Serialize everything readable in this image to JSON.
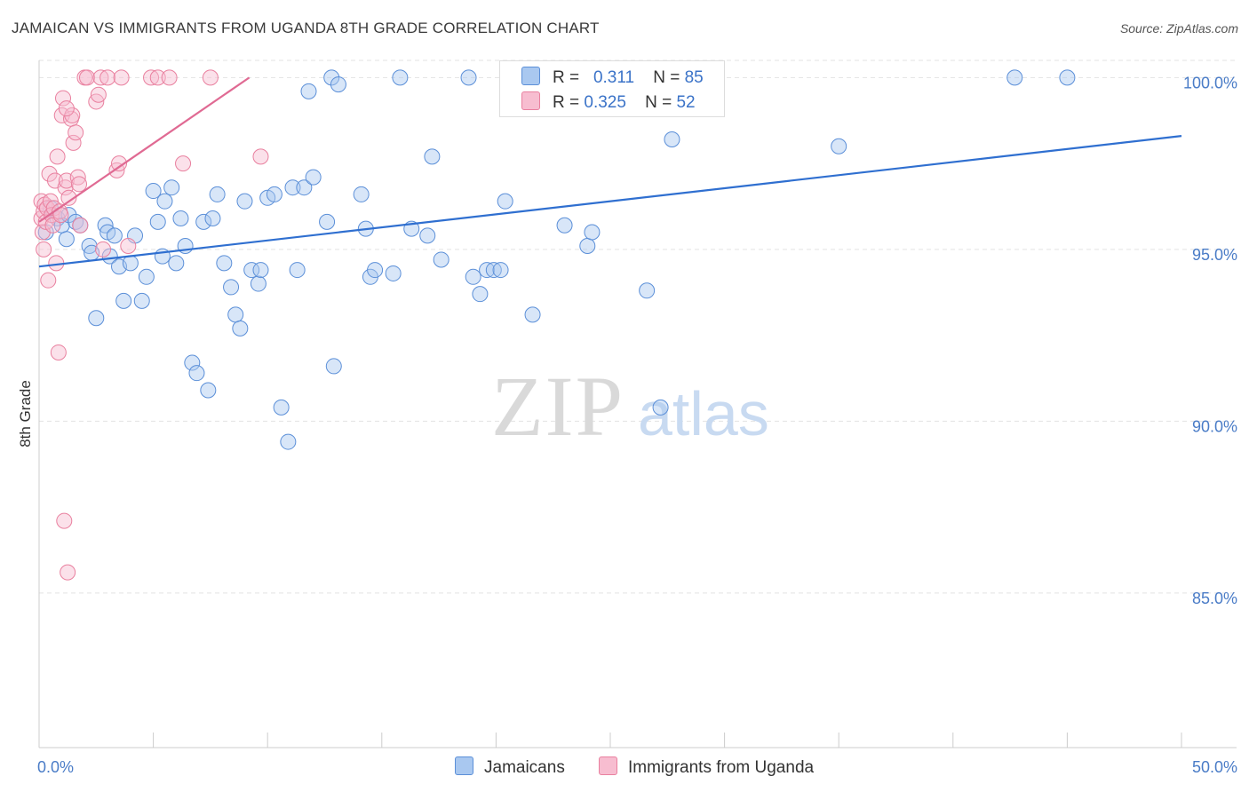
{
  "header": {
    "title": "JAMAICAN VS IMMIGRANTS FROM UGANDA 8TH GRADE CORRELATION CHART",
    "source": "Source: ZipAtlas.com"
  },
  "watermark": {
    "zip": "ZIP",
    "atlas": "atlas"
  },
  "legend": {
    "r_label": "R =",
    "n_label": "N =",
    "rows": [
      {
        "r": "0.311",
        "n": "85",
        "color": "#a9c8f0",
        "border": "#5b8fd8"
      },
      {
        "r": "0.325",
        "n": "52",
        "color": "#f7bdd0",
        "border": "#e9809f"
      }
    ]
  },
  "bottom_legend": [
    {
      "label": "Jamaicans",
      "color": "#a9c8f0",
      "border": "#5b8fd8"
    },
    {
      "label": "Immigrants from Uganda",
      "color": "#f7bdd0",
      "border": "#e9809f"
    }
  ],
  "colors": {
    "blue_fill": "rgba(169,200,240,0.45)",
    "blue_stroke": "#5b8fd8",
    "blue_line": "#2f6fd0",
    "pink_fill": "rgba(247,189,208,0.45)",
    "pink_stroke": "#e9809f",
    "pink_line": "#e06a93"
  },
  "chart_data": {
    "type": "scatter",
    "title": "JAMAICAN VS IMMIGRANTS FROM UGANDA 8TH GRADE CORRELATION CHART",
    "xlabel": "",
    "ylabel": "8th Grade",
    "xlim": [
      0,
      50
    ],
    "ylim": [
      80.5,
      100.5
    ],
    "x_tick_labels": [
      "0.0%",
      "50.0%"
    ],
    "y_ticks": [
      85,
      90,
      95,
      100
    ],
    "y_tick_labels": [
      "85.0%",
      "90.0%",
      "95.0%",
      "100.0%"
    ],
    "series": [
      {
        "name": "Jamaicans",
        "r": 0.311,
        "n": 85,
        "trend": {
          "x": [
            0,
            50
          ],
          "y": [
            94.5,
            98.3
          ]
        },
        "points": [
          [
            0.5,
            96.2
          ],
          [
            0.8,
            95.9
          ],
          [
            1.0,
            95.7
          ],
          [
            1.2,
            95.3
          ],
          [
            1.3,
            96.0
          ],
          [
            1.6,
            95.8
          ],
          [
            1.8,
            95.7
          ],
          [
            2.2,
            95.1
          ],
          [
            2.3,
            94.9
          ],
          [
            2.5,
            93.0
          ],
          [
            2.9,
            95.7
          ],
          [
            3.0,
            95.5
          ],
          [
            3.1,
            94.8
          ],
          [
            3.3,
            95.4
          ],
          [
            3.5,
            94.5
          ],
          [
            3.7,
            93.5
          ],
          [
            4.0,
            94.6
          ],
          [
            4.2,
            95.4
          ],
          [
            4.5,
            93.5
          ],
          [
            4.7,
            94.2
          ],
          [
            5.0,
            96.7
          ],
          [
            5.2,
            95.8
          ],
          [
            5.4,
            94.8
          ],
          [
            5.5,
            96.4
          ],
          [
            5.8,
            96.8
          ],
          [
            6.0,
            94.6
          ],
          [
            6.2,
            95.9
          ],
          [
            6.4,
            95.1
          ],
          [
            6.7,
            91.7
          ],
          [
            6.9,
            91.4
          ],
          [
            7.2,
            95.8
          ],
          [
            7.4,
            90.9
          ],
          [
            7.6,
            95.9
          ],
          [
            7.8,
            96.6
          ],
          [
            8.1,
            94.6
          ],
          [
            8.4,
            93.9
          ],
          [
            8.6,
            93.1
          ],
          [
            8.8,
            92.7
          ],
          [
            9.0,
            96.4
          ],
          [
            9.3,
            94.4
          ],
          [
            9.6,
            94.0
          ],
          [
            9.7,
            94.4
          ],
          [
            10.0,
            96.5
          ],
          [
            10.3,
            96.6
          ],
          [
            10.6,
            90.4
          ],
          [
            10.9,
            89.4
          ],
          [
            11.1,
            96.8
          ],
          [
            11.3,
            94.4
          ],
          [
            11.6,
            96.8
          ],
          [
            11.8,
            99.6
          ],
          [
            12.0,
            97.1
          ],
          [
            12.6,
            95.8
          ],
          [
            12.9,
            91.6
          ],
          [
            12.8,
            100.0
          ],
          [
            13.1,
            99.8
          ],
          [
            14.1,
            96.6
          ],
          [
            14.3,
            95.6
          ],
          [
            14.5,
            94.2
          ],
          [
            14.7,
            94.4
          ],
          [
            15.5,
            94.3
          ],
          [
            15.8,
            100.0
          ],
          [
            16.3,
            95.6
          ],
          [
            17.0,
            95.4
          ],
          [
            17.2,
            97.7
          ],
          [
            17.6,
            94.7
          ],
          [
            18.8,
            100.0
          ],
          [
            19.0,
            94.2
          ],
          [
            19.3,
            93.7
          ],
          [
            19.6,
            94.4
          ],
          [
            19.9,
            94.4
          ],
          [
            20.2,
            94.4
          ],
          [
            20.4,
            96.4
          ],
          [
            21.6,
            93.1
          ],
          [
            23.0,
            95.7
          ],
          [
            24.0,
            95.1
          ],
          [
            24.2,
            95.5
          ],
          [
            26.6,
            93.8
          ],
          [
            27.2,
            90.4
          ],
          [
            27.4,
            100.0
          ],
          [
            27.7,
            98.2
          ],
          [
            28.6,
            100.0
          ],
          [
            35.0,
            98.0
          ],
          [
            42.7,
            100.0
          ],
          [
            45.0,
            100.0
          ],
          [
            0.3,
            95.5
          ]
        ]
      },
      {
        "name": "Immigrants from Uganda",
        "r": 0.325,
        "n": 52,
        "trend": {
          "x": [
            0,
            9.2
          ],
          "y": [
            95.8,
            100.0
          ]
        },
        "points": [
          [
            0.1,
            96.4
          ],
          [
            0.1,
            95.9
          ],
          [
            0.15,
            95.5
          ],
          [
            0.2,
            95.0
          ],
          [
            0.2,
            96.1
          ],
          [
            0.25,
            96.3
          ],
          [
            0.3,
            95.8
          ],
          [
            0.35,
            96.2
          ],
          [
            0.4,
            94.1
          ],
          [
            0.45,
            97.2
          ],
          [
            0.5,
            96.4
          ],
          [
            0.55,
            96.0
          ],
          [
            0.6,
            95.7
          ],
          [
            0.65,
            96.2
          ],
          [
            0.7,
            97.0
          ],
          [
            0.75,
            94.6
          ],
          [
            0.8,
            97.7
          ],
          [
            0.85,
            92.0
          ],
          [
            0.9,
            96.1
          ],
          [
            0.95,
            96.0
          ],
          [
            1.0,
            98.9
          ],
          [
            1.05,
            99.4
          ],
          [
            1.1,
            87.1
          ],
          [
            1.15,
            96.8
          ],
          [
            1.2,
            97.0
          ],
          [
            1.25,
            85.6
          ],
          [
            1.3,
            96.5
          ],
          [
            1.4,
            98.8
          ],
          [
            1.45,
            98.9
          ],
          [
            1.5,
            98.1
          ],
          [
            1.6,
            98.4
          ],
          [
            1.7,
            97.1
          ],
          [
            1.75,
            96.9
          ],
          [
            1.8,
            95.7
          ],
          [
            1.2,
            99.1
          ],
          [
            2.0,
            100.0
          ],
          [
            2.1,
            100.0
          ],
          [
            2.5,
            99.3
          ],
          [
            2.6,
            99.5
          ],
          [
            2.7,
            100.0
          ],
          [
            2.8,
            95.0
          ],
          [
            3.0,
            100.0
          ],
          [
            3.4,
            97.3
          ],
          [
            3.5,
            97.5
          ],
          [
            3.6,
            100.0
          ],
          [
            3.9,
            95.1
          ],
          [
            4.9,
            100.0
          ],
          [
            5.2,
            100.0
          ],
          [
            5.7,
            100.0
          ],
          [
            6.3,
            97.5
          ],
          [
            7.5,
            100.0
          ],
          [
            9.7,
            97.7
          ]
        ]
      }
    ]
  }
}
